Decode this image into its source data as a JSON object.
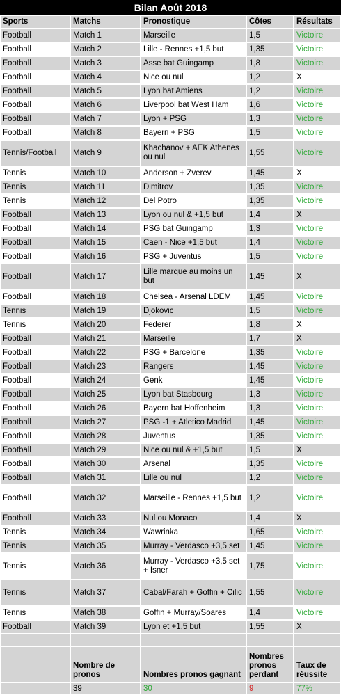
{
  "title": "Bilan Août 2018",
  "headers": [
    "Sports",
    "Matchs",
    "Pronostique",
    "Côtes",
    "Résultats"
  ],
  "rows": [
    {
      "sport": "Football",
      "match": "Match 1",
      "prono": "Marseille",
      "cote": "1,5",
      "result": "Victoire"
    },
    {
      "sport": "Football",
      "match": "Match 2",
      "prono": "Lille - Rennes +1,5 but",
      "cote": "1,35",
      "result": "Victoire"
    },
    {
      "sport": "Football",
      "match": "Match 3",
      "prono": "Asse bat Guingamp",
      "cote": "1,8",
      "result": "Victoire"
    },
    {
      "sport": "Football",
      "match": "Match 4",
      "prono": "Nice ou nul",
      "cote": "1,2",
      "result": "X"
    },
    {
      "sport": "Football",
      "match": "Match 5",
      "prono": "Lyon bat Amiens",
      "cote": "1,2",
      "result": "Victoire"
    },
    {
      "sport": "Football",
      "match": "Match 6",
      "prono": "Liverpool bat West Ham",
      "cote": "1,6",
      "result": "Victoire"
    },
    {
      "sport": "Football",
      "match": "Match 7",
      "prono": "Lyon + PSG",
      "cote": "1,3",
      "result": "Victoire"
    },
    {
      "sport": "Football",
      "match": "Match 8",
      "prono": "Bayern + PSG",
      "cote": "1,5",
      "result": "Victoire"
    },
    {
      "sport": "Tennis/Football",
      "match": "Match 9",
      "prono": "Khachanov + AEK Athenes ou nul",
      "cote": "1,55",
      "result": "Victoire"
    },
    {
      "sport": "Tennis",
      "match": "Match 10",
      "prono": "Anderson + Zverev",
      "cote": "1,45",
      "result": "X"
    },
    {
      "sport": "Tennis",
      "match": "Match 11",
      "prono": "Dimitrov",
      "cote": "1,35",
      "result": "Victoire"
    },
    {
      "sport": "Tennis",
      "match": "Match 12",
      "prono": "Del Potro",
      "cote": "1,35",
      "result": "Victoire"
    },
    {
      "sport": "Football",
      "match": "Match 13",
      "prono": "Lyon ou nul & +1,5 but",
      "cote": "1,4",
      "result": "X"
    },
    {
      "sport": "Football",
      "match": "Match 14",
      "prono": "PSG bat Guingamp",
      "cote": "1,3",
      "result": "Victoire"
    },
    {
      "sport": "Football",
      "match": "Match 15",
      "prono": "Caen - Nice +1,5 but",
      "cote": "1,4",
      "result": "Victoire"
    },
    {
      "sport": "Football",
      "match": "Match 16",
      "prono": "PSG + Juventus",
      "cote": "1,5",
      "result": "Victoire"
    },
    {
      "sport": "Football",
      "match": "Match 17",
      "prono": "Lille marque au moins un but",
      "cote": "1,45",
      "result": "X"
    },
    {
      "sport": "Football",
      "match": "Match 18",
      "prono": "Chelsea - Arsenal LDEM",
      "cote": "1,45",
      "result": "Victoire"
    },
    {
      "sport": "Tennis",
      "match": "Match 19",
      "prono": "Djokovic",
      "cote": "1,5",
      "result": "Victoire"
    },
    {
      "sport": "Tennis",
      "match": "Match 20",
      "prono": "Federer",
      "cote": "1,8",
      "result": "X"
    },
    {
      "sport": "Football",
      "match": "Match 21",
      "prono": "Marseille",
      "cote": "1,7",
      "result": "X"
    },
    {
      "sport": "Football",
      "match": "Match 22",
      "prono": "PSG + Barcelone",
      "cote": "1,35",
      "result": "Victoire"
    },
    {
      "sport": "Football",
      "match": "Match 23",
      "prono": "Rangers",
      "cote": "1,45",
      "result": "Victoire"
    },
    {
      "sport": "Football",
      "match": "Match 24",
      "prono": "Genk",
      "cote": "1,45",
      "result": "Victoire"
    },
    {
      "sport": "Football",
      "match": "Match 25",
      "prono": "Lyon bat Stasbourg",
      "cote": "1,3",
      "result": "Victoire"
    },
    {
      "sport": "Football",
      "match": "Match 26",
      "prono": "Bayern bat Hoffenheim",
      "cote": "1,3",
      "result": "Victoire"
    },
    {
      "sport": "Football",
      "match": "Match 27",
      "prono": "PSG -1 + Atletico Madrid",
      "cote": "1,45",
      "result": "Victoire"
    },
    {
      "sport": "Football",
      "match": "Match 28",
      "prono": "Juventus",
      "cote": "1,35",
      "result": "Victoire"
    },
    {
      "sport": "Football",
      "match": "Match 29",
      "prono": "Nice ou nul & +1,5 but",
      "cote": "1,5",
      "result": "X"
    },
    {
      "sport": "Football",
      "match": "Match 30",
      "prono": "Arsenal",
      "cote": "1,35",
      "result": "Victoire"
    },
    {
      "sport": "Football",
      "match": "Match 31",
      "prono": "Lille ou nul",
      "cote": "1,2",
      "result": "Victoire"
    },
    {
      "sport": "Football",
      "match": "Match 32",
      "prono": "Marseille - Rennes +1,5 but",
      "cote": "1,2",
      "result": "Victoire"
    },
    {
      "sport": "Football",
      "match": "Match 33",
      "prono": "Nul ou Monaco",
      "cote": "1,4",
      "result": "X"
    },
    {
      "sport": "Tennis",
      "match": "Match 34",
      "prono": "Wawrinka",
      "cote": "1,65",
      "result": "Victoire"
    },
    {
      "sport": "Tennis",
      "match": "Match 35",
      "prono": "Murray - Verdasco +3,5 set",
      "cote": "1,45",
      "result": "Victoire"
    },
    {
      "sport": "Tennis",
      "match": "Match 36",
      "prono": "Murray - Verdasco +3,5 set + Isner",
      "cote": "1,75",
      "result": "Victoire"
    },
    {
      "sport": "Tennis",
      "match": "Match 37",
      "prono": "Cabal/Farah + Goffin + Cilic",
      "cote": "1,55",
      "result": "Victoire"
    },
    {
      "sport": "Tennis",
      "match": "Match 38",
      "prono": "Goffin + Murray/Soares",
      "cote": "1,4",
      "result": "Victoire"
    },
    {
      "sport": "Football",
      "match": "Match 39",
      "prono": "Lyon et +1,5 but",
      "cote": "1,55",
      "result": "X"
    }
  ],
  "summary": {
    "headers": [
      "Nombre de pronos",
      "Nombres pronos gagnant",
      "Nombres pronos perdant",
      "Taux de réussite"
    ],
    "values": [
      "39",
      "30",
      "9",
      "77%"
    ]
  },
  "colors": {
    "win": "#2ea836",
    "loss": "#d52b2b",
    "header_bg": "#000000",
    "cell_bg": "#d4d4d4"
  }
}
